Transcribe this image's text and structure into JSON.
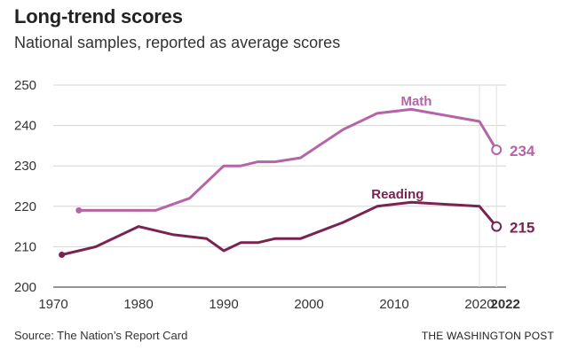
{
  "header": {
    "title": "Long-trend scores",
    "subtitle": "National samples, reported as average scores"
  },
  "footer": {
    "source": "Source: The Nation’s Report Card",
    "credit": "THE WASHINGTON POST"
  },
  "chart_data": {
    "type": "line",
    "title": "Long-trend scores",
    "subtitle": "National samples, reported as average scores",
    "xlabel": "",
    "ylabel": "",
    "xlim": [
      1970,
      2023
    ],
    "ylim": [
      200,
      250
    ],
    "xticks": [
      "1970",
      "1980",
      "1990",
      "2000",
      "2010",
      "2020",
      "2022"
    ],
    "yticks": [
      "250",
      "240",
      "230",
      "220",
      "210",
      "200"
    ],
    "grid": true,
    "legend": "inline labels",
    "series": [
      {
        "name": "Math",
        "color": "#b564a8",
        "x": [
          1973,
          1978,
          1982,
          1986,
          1990,
          1992,
          1994,
          1996,
          1999,
          2004,
          2008,
          2012,
          2020,
          2022
        ],
        "y": [
          219,
          219,
          219,
          222,
          230,
          230,
          231,
          231,
          232,
          239,
          243,
          244,
          241,
          234
        ],
        "end_label": "234"
      },
      {
        "name": "Reading",
        "color": "#7a2350",
        "x": [
          1971,
          1975,
          1980,
          1984,
          1988,
          1990,
          1992,
          1994,
          1996,
          1999,
          2004,
          2008,
          2012,
          2020,
          2022
        ],
        "y": [
          208,
          210,
          215,
          213,
          212,
          209,
          211,
          211,
          212,
          212,
          216,
          220,
          221,
          220,
          215
        ],
        "end_label": "215"
      }
    ]
  }
}
